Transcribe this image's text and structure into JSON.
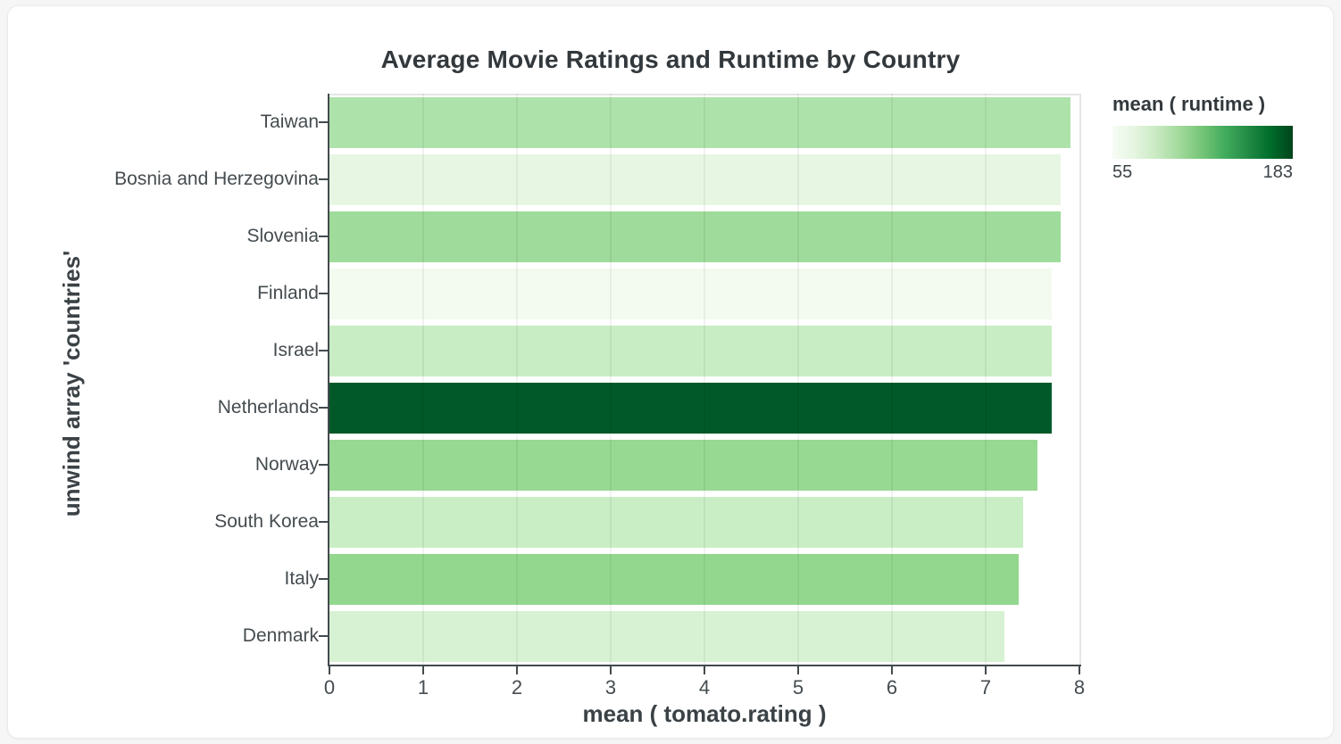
{
  "page": {
    "background": "#f5f6f5",
    "card_background": "#ffffff"
  },
  "chart_data": {
    "type": "bar",
    "orientation": "horizontal",
    "title": "Average Movie Ratings and Runtime by Country",
    "xlabel": "mean ( tomato.rating )",
    "ylabel": "unwind array 'countries'",
    "xlim": [
      0,
      8
    ],
    "x_ticks": [
      0,
      1,
      2,
      3,
      4,
      5,
      6,
      7,
      8
    ],
    "grid": true,
    "legend_position": "top-right",
    "categories": [
      "Taiwan",
      "Bosnia and Herzegovina",
      "Slovenia",
      "Finland",
      "Israel",
      "Netherlands",
      "Norway",
      "South Korea",
      "Italy",
      "Denmark"
    ],
    "values": [
      7.9,
      7.8,
      7.8,
      7.7,
      7.7,
      7.7,
      7.55,
      7.4,
      7.35,
      7.2
    ],
    "bar_colors": [
      "#aee2ab",
      "#e7f6e3",
      "#9fdb9a",
      "#f3faf0",
      "#c8edc4",
      "#01592a",
      "#97d992",
      "#c9eec5",
      "#93d78e",
      "#d7f2d2"
    ],
    "runtime_mean_estimated_from_color": [
      96,
      68,
      102,
      58,
      86,
      174,
      106,
      85,
      107,
      79
    ],
    "color_legend": {
      "title": "mean ( runtime )",
      "min": 55,
      "max": 183,
      "scheme": "greens",
      "gradient_stops": [
        "#f7fcf5",
        "#e5f5e0",
        "#c7e9c0",
        "#a1d99b",
        "#74c476",
        "#41ab5d",
        "#238b45",
        "#006d2c",
        "#00441b"
      ]
    }
  }
}
